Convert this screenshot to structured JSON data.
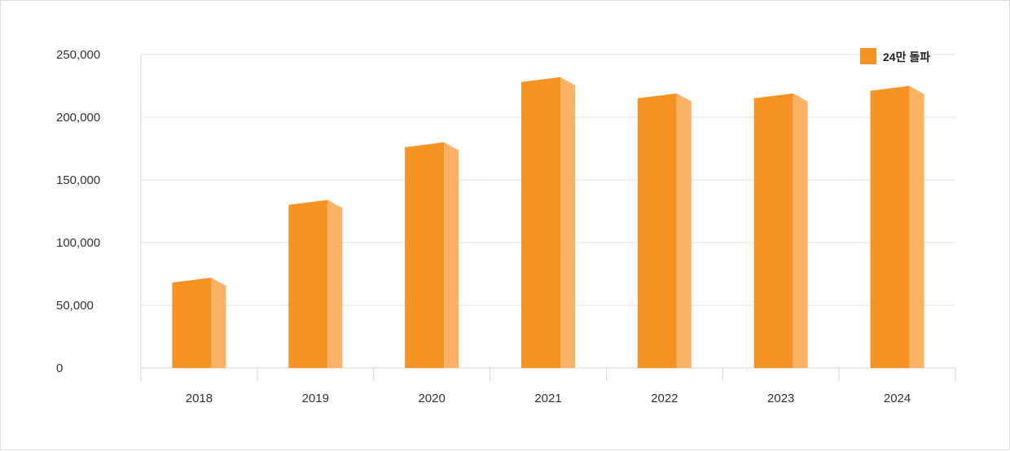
{
  "chart_data": {
    "type": "bar",
    "categories": [
      "2018",
      "2019",
      "2020",
      "2021",
      "2022",
      "2023",
      "2024"
    ],
    "series": [
      {
        "name": "24만 돌파",
        "values": [
          72000,
          134000,
          180000,
          232000,
          219000,
          219000,
          225000
        ]
      }
    ],
    "ylim": [
      0,
      250000
    ],
    "yticks": [
      "0",
      "50,000",
      "100,000",
      "150,000",
      "200,000",
      "250,000"
    ],
    "grid": true,
    "legend": "top-right",
    "colors": {
      "front": "#F69322",
      "side": "#FBB264"
    }
  }
}
